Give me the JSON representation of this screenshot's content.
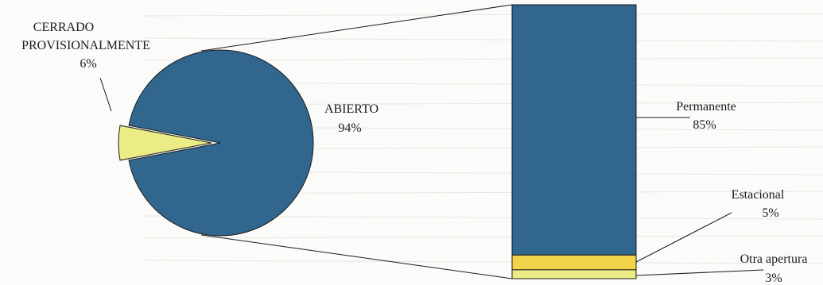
{
  "chart_data": {
    "type": "bar-of-pie",
    "pie": {
      "slices": [
        {
          "name": "ABIERTO",
          "value": 94,
          "label": "ABIERTO",
          "pct_label": "94%",
          "color": "#31678f"
        },
        {
          "name": "CERRADO PROVISIONALMENTE",
          "value": 6,
          "label_lines": [
            "CERRADO",
            "PROVISIONALMENTE"
          ],
          "pct_label": "6%",
          "color": "#ecec86"
        }
      ]
    },
    "bar": {
      "segments": [
        {
          "name": "Permanente",
          "value": 85,
          "label": "Permanente",
          "pct_label": "85%",
          "color": "#31678f"
        },
        {
          "name": "Estacional",
          "value": 5,
          "label": "Estacional",
          "pct_label": "5%",
          "color": "#f3d34a"
        },
        {
          "name": "Otra apertura",
          "value": 3,
          "label": "Otra apertura",
          "pct_label": "3%",
          "color": "#ecec86"
        }
      ]
    }
  }
}
